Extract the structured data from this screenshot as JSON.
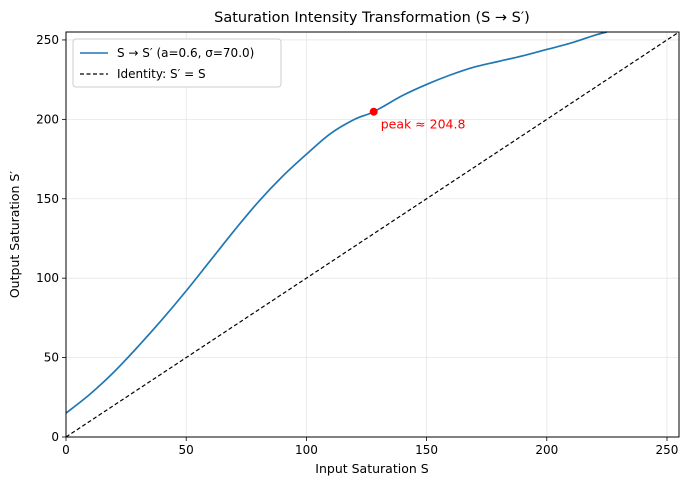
{
  "chart_data": {
    "type": "line",
    "title": "Saturation Intensity Transformation (S → S′)",
    "xlabel": "Input Saturation S",
    "ylabel": "Output Saturation S′",
    "xlim": [
      0,
      255
    ],
    "ylim": [
      0,
      255
    ],
    "xticks": [
      0,
      50,
      100,
      150,
      200,
      250
    ],
    "yticks": [
      0,
      50,
      100,
      150,
      200,
      250
    ],
    "grid": true,
    "legend_position": "top-left",
    "series": [
      {
        "name": "S → S′ (a=0.6, σ=70.0)",
        "color": "#1f77b4",
        "style": "solid",
        "x": [
          0,
          10,
          20,
          30,
          40,
          50,
          60,
          70,
          80,
          90,
          100,
          110,
          120,
          128,
          140,
          150,
          160,
          170,
          180,
          190,
          200,
          210,
          220,
          225
        ],
        "y": [
          15,
          27,
          41,
          57,
          74,
          92,
          111,
          130,
          148,
          164,
          178,
          191,
          200,
          204.8,
          215,
          222,
          228,
          233,
          236.5,
          240,
          244,
          248,
          253,
          255
        ]
      },
      {
        "name": "Identity: S′ = S",
        "color": "#000000",
        "style": "dashed",
        "x": [
          0,
          255
        ],
        "y": [
          0,
          255
        ]
      }
    ],
    "annotations": [
      {
        "label": "peak ≈ 204.8",
        "x": 128,
        "y": 204.8,
        "color": "#ff0000"
      }
    ]
  }
}
